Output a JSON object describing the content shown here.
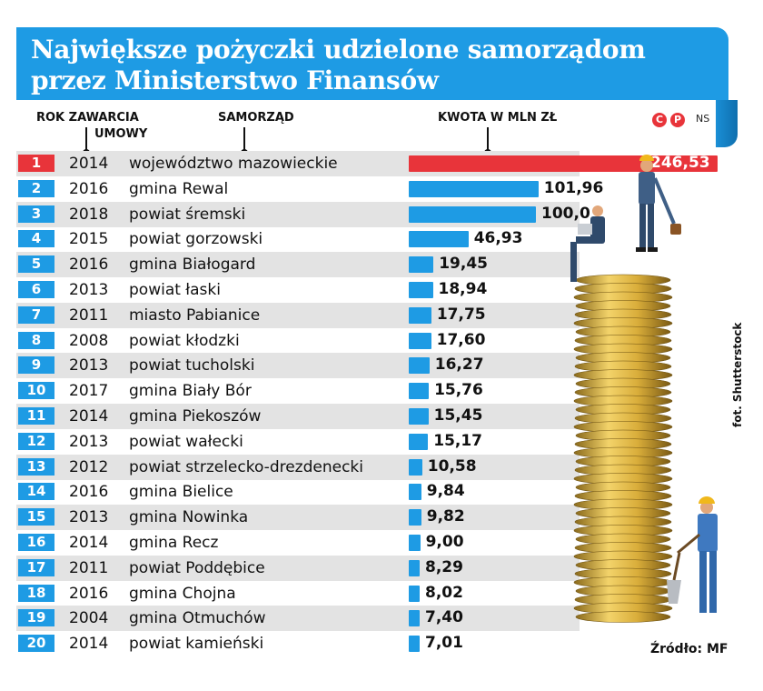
{
  "header": {
    "title_line1": "Największe pożyczki udzielone samorządom",
    "title_line2": "przez Ministerstwo Finansów"
  },
  "columns": {
    "year_line1": "ROK ZAWARCIA",
    "year_line2": "UMOWY",
    "entity": "SAMORZĄD",
    "amount": "KWOTA W MLN ZŁ"
  },
  "logo": {
    "c_letter": "C",
    "p_letter": "P",
    "ns": "NS"
  },
  "photo_credit": "fot. Shutterstock",
  "source": "Źródło: MF",
  "colors": {
    "header_blue": "#1e9be4",
    "bar_blue": "#1e9be4",
    "highlight_red": "#e8343a",
    "stripe_gray": "#e3e3e3"
  },
  "chart_data": {
    "type": "bar",
    "orientation": "horizontal",
    "title": "Największe pożyczki udzielone samorządom przez Ministerstwo Finansów",
    "value_label": "KWOTA W MLN ZŁ",
    "rows": [
      {
        "rank": "1",
        "year": "2014",
        "name": "województwo mazowieckie",
        "value": 246.53,
        "label": "246,53"
      },
      {
        "rank": "2",
        "year": "2016",
        "name": "gmina Rewal",
        "value": 101.96,
        "label": "101,96"
      },
      {
        "rank": "3",
        "year": "2018",
        "name": "powiat śremski",
        "value": 100.0,
        "label": "100,0"
      },
      {
        "rank": "4",
        "year": "2015",
        "name": "powiat gorzowski",
        "value": 46.93,
        "label": "46,93"
      },
      {
        "rank": "5",
        "year": "2016",
        "name": "gmina Białogard",
        "value": 19.45,
        "label": "19,45"
      },
      {
        "rank": "6",
        "year": "2013",
        "name": "powiat łaski",
        "value": 18.94,
        "label": "18,94"
      },
      {
        "rank": "7",
        "year": "2011",
        "name": "miasto Pabianice",
        "value": 17.75,
        "label": "17,75"
      },
      {
        "rank": "8",
        "year": "2008",
        "name": "powiat kłodzki",
        "value": 17.6,
        "label": "17,60"
      },
      {
        "rank": "9",
        "year": "2013",
        "name": "powiat tucholski",
        "value": 16.27,
        "label": "16,27"
      },
      {
        "rank": "10",
        "year": "2017",
        "name": "gmina Biały Bór",
        "value": 15.76,
        "label": "15,76"
      },
      {
        "rank": "11",
        "year": "2014",
        "name": "gmina Piekoszów",
        "value": 15.45,
        "label": "15,45"
      },
      {
        "rank": "12",
        "year": "2013",
        "name": "powiat wałecki",
        "value": 15.17,
        "label": "15,17"
      },
      {
        "rank": "13",
        "year": "2012",
        "name": "powiat strzelecko-drezdenecki",
        "value": 10.58,
        "label": "10,58"
      },
      {
        "rank": "14",
        "year": "2016",
        "name": "gmina Bielice",
        "value": 9.84,
        "label": "9,84"
      },
      {
        "rank": "15",
        "year": "2013",
        "name": "gmina Nowinka",
        "value": 9.82,
        "label": "9,82"
      },
      {
        "rank": "16",
        "year": "2014",
        "name": "gmina Recz",
        "value": 9.0,
        "label": "9,00"
      },
      {
        "rank": "17",
        "year": "2011",
        "name": "powiat Poddębice",
        "value": 8.29,
        "label": "8,29"
      },
      {
        "rank": "18",
        "year": "2016",
        "name": "gmina Chojna",
        "value": 8.02,
        "label": "8,02"
      },
      {
        "rank": "19",
        "year": "2004",
        "name": "gmina Otmuchów",
        "value": 7.4,
        "label": "7,40"
      },
      {
        "rank": "20",
        "year": "2014",
        "name": "powiat kamieński",
        "value": 7.01,
        "label": "7,01"
      }
    ]
  }
}
